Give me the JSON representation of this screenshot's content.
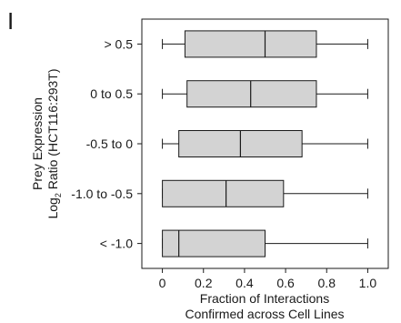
{
  "panel_label": "I",
  "chart_data": {
    "type": "box",
    "orientation": "horizontal",
    "title": "",
    "xlabel": [
      "Fraction of Interactions",
      "Confirmed across Cell Lines"
    ],
    "ylabel": {
      "line1": "Prey Expression",
      "line2_prefix": "Log",
      "line2_sub": "2",
      "line2_suffix": " Ratio (HCT116:293T)"
    },
    "xlim": [
      -0.1,
      1.1
    ],
    "xticks": [
      0,
      0.2,
      0.4,
      0.6,
      0.8,
      1.0
    ],
    "xtick_labels": [
      "0",
      "0.2",
      "0.4",
      "0.6",
      "0.8",
      "1.0"
    ],
    "categories": [
      "> 0.5",
      "0 to 0.5",
      "-0.5 to 0",
      "-1.0 to -0.5",
      "< -1.0"
    ],
    "boxes": [
      {
        "category": "> 0.5",
        "min": 0,
        "q1": 0.11,
        "median": 0.5,
        "q3": 0.75,
        "max": 1.0
      },
      {
        "category": "0 to 0.5",
        "min": 0,
        "q1": 0.12,
        "median": 0.43,
        "q3": 0.75,
        "max": 1.0
      },
      {
        "category": "-0.5 to 0",
        "min": 0,
        "q1": 0.08,
        "median": 0.38,
        "q3": 0.68,
        "max": 1.0
      },
      {
        "category": "-1.0 to -0.5",
        "min": 0,
        "q1": 0.0,
        "median": 0.31,
        "q3": 0.59,
        "max": 1.0
      },
      {
        "category": "< -1.0",
        "min": 0,
        "q1": 0.0,
        "median": 0.08,
        "q3": 0.5,
        "max": 1.0
      }
    ],
    "colors": {
      "box_fill": "#d3d3d3",
      "stroke": "#1a1a1a"
    },
    "grid": false
  }
}
